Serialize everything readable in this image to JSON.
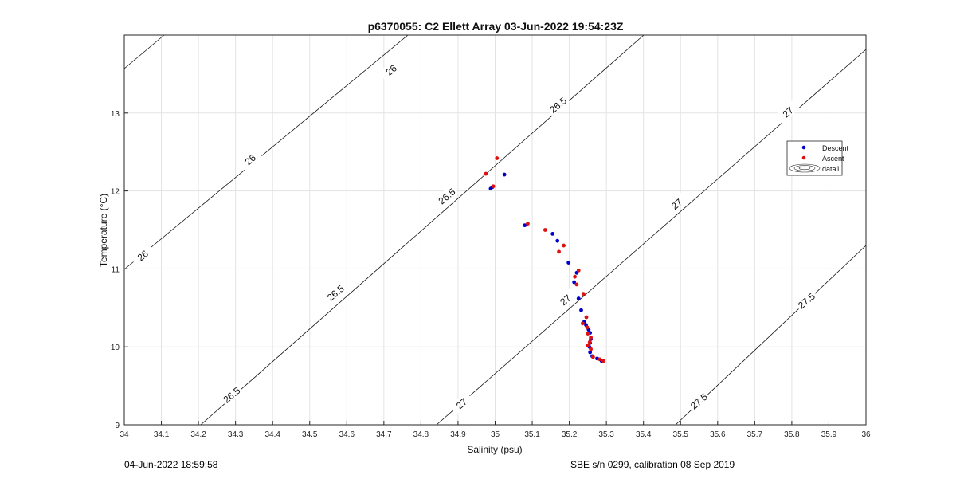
{
  "chart_data": {
    "type": "scatter",
    "title": "p6370055: C2 Ellett Array 03-Jun-2022 19:54:23Z",
    "xlabel": "Salinity (psu)",
    "ylabel": "Temperature (°C)",
    "xlim": [
      34,
      36
    ],
    "ylim": [
      9,
      14
    ],
    "x_ticks": [
      "34",
      "34.1",
      "34.2",
      "34.3",
      "34.4",
      "34.5",
      "34.6",
      "34.7",
      "34.8",
      "34.9",
      "35",
      "35.1",
      "35.2",
      "35.3",
      "35.4",
      "35.5",
      "35.6",
      "35.7",
      "35.8",
      "35.9",
      "36"
    ],
    "y_ticks": [
      "9",
      "10",
      "11",
      "12",
      "13"
    ],
    "grid": true,
    "legend_position": "right",
    "legend": [
      "Descent",
      "Ascent",
      "data1"
    ],
    "series": [
      {
        "name": "Descent",
        "color": "#0000cc",
        "points": [
          [
            35.025,
            12.21
          ],
          [
            34.993,
            12.05
          ],
          [
            34.988,
            12.03
          ],
          [
            35.08,
            11.56
          ],
          [
            35.155,
            11.45
          ],
          [
            35.168,
            11.36
          ],
          [
            35.198,
            11.08
          ],
          [
            35.22,
            10.95
          ],
          [
            35.213,
            10.83
          ],
          [
            35.225,
            10.62
          ],
          [
            35.232,
            10.47
          ],
          [
            35.24,
            10.32
          ],
          [
            35.245,
            10.28
          ],
          [
            35.252,
            10.22
          ],
          [
            35.256,
            10.18
          ],
          [
            35.258,
            10.1
          ],
          [
            35.256,
            10.05
          ],
          [
            35.254,
            10.0
          ],
          [
            35.256,
            9.93
          ],
          [
            35.262,
            9.88
          ],
          [
            35.275,
            9.85
          ],
          [
            35.287,
            9.82
          ]
        ]
      },
      {
        "name": "Ascent",
        "color": "#dd1111",
        "points": [
          [
            35.005,
            12.42
          ],
          [
            34.975,
            12.22
          ],
          [
            34.995,
            12.06
          ],
          [
            35.088,
            11.58
          ],
          [
            35.135,
            11.5
          ],
          [
            35.185,
            11.3
          ],
          [
            35.172,
            11.22
          ],
          [
            35.225,
            10.98
          ],
          [
            35.215,
            10.9
          ],
          [
            35.22,
            10.8
          ],
          [
            35.238,
            10.68
          ],
          [
            35.246,
            10.38
          ],
          [
            35.236,
            10.3
          ],
          [
            35.248,
            10.25
          ],
          [
            35.25,
            10.17
          ],
          [
            35.258,
            10.12
          ],
          [
            35.255,
            10.06
          ],
          [
            35.25,
            10.02
          ],
          [
            35.258,
            9.97
          ],
          [
            35.264,
            9.87
          ],
          [
            35.282,
            9.84
          ],
          [
            35.292,
            9.82
          ]
        ]
      }
    ],
    "contours": [
      {
        "level": "26",
        "labels": [
          {
            "text": "26",
            "at": [
              34.05,
              11.17
            ]
          },
          {
            "text": "26",
            "at": [
              34.34,
              12.4
            ]
          },
          {
            "text": "26",
            "at": [
              34.72,
              13.55
            ]
          }
        ]
      },
      {
        "level": "26.5",
        "labels": [
          {
            "text": "26.5",
            "at": [
              34.29,
              9.38
            ]
          },
          {
            "text": "26.5",
            "at": [
              34.57,
              10.69
            ]
          },
          {
            "text": "26.5",
            "at": [
              34.87,
              11.93
            ]
          },
          {
            "text": "26.5",
            "at": [
              35.17,
              13.1
            ]
          }
        ]
      },
      {
        "level": "27",
        "labels": [
          {
            "text": "27",
            "at": [
              34.91,
              9.27
            ]
          },
          {
            "text": "27",
            "at": [
              35.19,
              10.6
            ]
          },
          {
            "text": "27",
            "at": [
              35.49,
              11.83
            ]
          },
          {
            "text": "27",
            "at": [
              35.79,
              13.01
            ]
          }
        ]
      },
      {
        "level": "27.5",
        "labels": [
          {
            "text": "27.5",
            "at": [
              35.55,
              9.3
            ]
          },
          {
            "text": "27.5",
            "at": [
              35.84,
              10.59
            ]
          }
        ]
      }
    ]
  },
  "footer": {
    "left": "04-Jun-2022 18:59:58",
    "right": "SBE s/n 0299, calibration 08 Sep 2019"
  }
}
